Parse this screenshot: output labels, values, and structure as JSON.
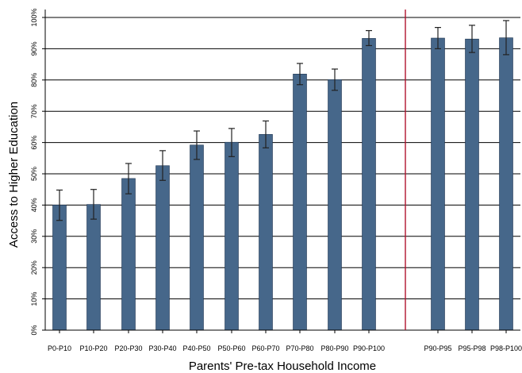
{
  "chart_data": {
    "type": "bar",
    "xlabel": "Parents' Pre-tax Household Income",
    "ylabel": "Access to Higher Education",
    "ylim": [
      0,
      100
    ],
    "yticks": [
      "0%",
      "10%",
      "20%",
      "30%",
      "40%",
      "50%",
      "60%",
      "70%",
      "80%",
      "90%",
      "100%"
    ],
    "grid": "horizontal",
    "bar_color": "#46678a",
    "divider_color": "#b0132e",
    "divider_after_category": "P90-P100",
    "categories": [
      "P0-P10",
      "P10-P20",
      "P20-P30",
      "P30-P40",
      "P40-P50",
      "P50-P60",
      "P60-P70",
      "P70-P80",
      "P80-P90",
      "P90-P100",
      "P90-P95",
      "P95-P98",
      "P98-P100"
    ],
    "values": [
      40.0,
      40.2,
      48.5,
      52.6,
      59.2,
      60.1,
      62.6,
      81.9,
      80.1,
      93.3,
      93.4,
      93.1,
      93.5
    ],
    "error_low": [
      35.1,
      35.5,
      43.6,
      47.9,
      54.6,
      55.5,
      58.3,
      78.5,
      76.7,
      91.0,
      90.0,
      88.8,
      88.1
    ],
    "error_high": [
      44.8,
      45.0,
      53.3,
      57.4,
      63.7,
      64.5,
      66.9,
      85.3,
      83.5,
      95.8,
      96.8,
      97.5,
      99.0
    ]
  }
}
